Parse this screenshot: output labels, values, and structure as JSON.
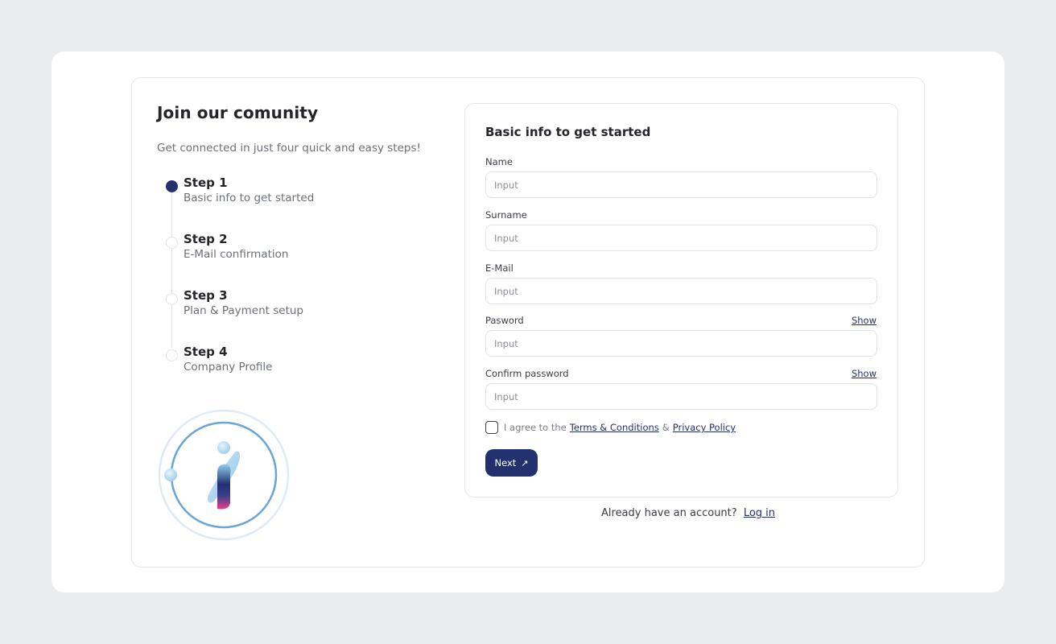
{
  "intro": {
    "title": "Join our comunity",
    "subtitle": "Get connected in just four quick and easy steps!"
  },
  "steps": [
    {
      "title": "Step 1",
      "description": "Basic info to get started",
      "active": true
    },
    {
      "title": "Step 2",
      "description": "E-Mail confirmation",
      "active": false
    },
    {
      "title": "Step 3",
      "description": "Plan & Payment setup",
      "active": false
    },
    {
      "title": "Step 4",
      "description": "Company Profile",
      "active": false
    }
  ],
  "form": {
    "title": "Basic info to get started",
    "fields": {
      "name": {
        "label": "Name",
        "placeholder": "Input"
      },
      "surname": {
        "label": "Surname",
        "placeholder": "Input"
      },
      "email": {
        "label": "E-Mail",
        "placeholder": "Input"
      },
      "password": {
        "label": "Pasword",
        "placeholder": "Input",
        "toggle_label": "Show"
      },
      "confirm_password": {
        "label": "Confirm password",
        "placeholder": "Input",
        "toggle_label": "Show"
      }
    },
    "agreement": {
      "prefix": "I agree to the",
      "terms_label": "Terms & Conditions",
      "separator": "&",
      "privacy_label": "Privacy Policy",
      "checked": false
    },
    "next_label": "Next",
    "next_icon": "arrow-up-right-icon"
  },
  "login": {
    "prompt": "Already have an account?",
    "link_label": "Log in"
  },
  "colors": {
    "background": "#eaecef",
    "card": "#ffffff",
    "accent": "#23306e",
    "muted_text": "#6b6f78",
    "border": "#e4e6ea"
  }
}
